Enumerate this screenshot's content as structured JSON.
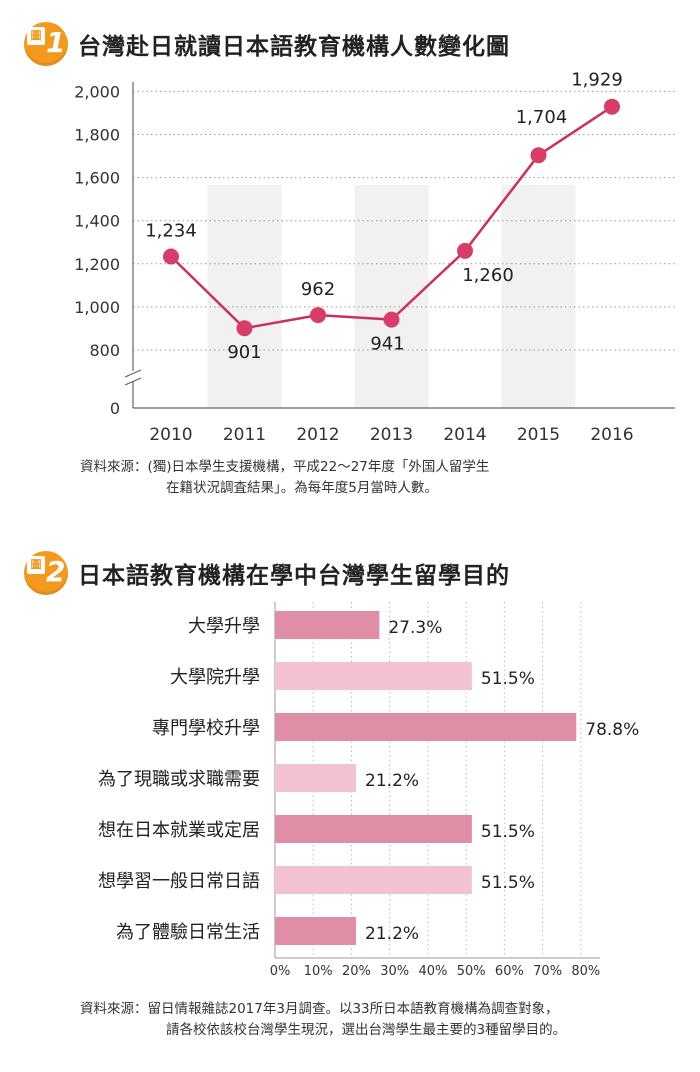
{
  "figure1": {
    "badge_tag": "圖",
    "badge_num": "1",
    "title": "台灣赴日就讀日本語教育機構人數變化圖",
    "source_line1": "資料來源：(獨)日本學生支援機構，平成22～27年度「外国人留学生",
    "source_line2": "在籍状況調査結果」。為每年度5月當時人數。"
  },
  "figure2": {
    "badge_tag": "圖",
    "badge_num": "2",
    "title": "日本語教育機構在學中台灣學生留學目的",
    "source_line1": "資料來源：留日情報雜誌2017年3月調查。以33所日本語教育機構為調查對象，",
    "source_line2": "請各校依該校台灣學生現況，選出台灣學生最主要的3種留學目的。"
  },
  "chart_data": [
    {
      "type": "line",
      "x": [
        "2010",
        "2011",
        "2012",
        "2013",
        "2014",
        "2015",
        "2016"
      ],
      "series": [
        {
          "values": [
            1234,
            901,
            962,
            941,
            1260,
            1704,
            1929
          ],
          "labels": [
            "1,234",
            "901",
            "962",
            "941",
            "1,260",
            "1,704",
            "1,929"
          ]
        }
      ],
      "yticks": [
        "0",
        "800",
        "1,000",
        "1,200",
        "1,400",
        "1,600",
        "1,800",
        "2,000"
      ],
      "ytick_values": [
        0,
        800,
        1000,
        1200,
        1400,
        1600,
        1800,
        2000
      ],
      "ylim": [
        0,
        2000
      ],
      "axis_break": true,
      "grid": "dotted horizontal",
      "colors": {
        "line": "#c8325a",
        "marker": "#d83c69",
        "band": "#f1f1f1"
      }
    },
    {
      "type": "bar",
      "orientation": "horizontal",
      "categories": [
        "大學升學",
        "大學院升學",
        "專門學校升學",
        "為了現職或求職需要",
        "想在日本就業或定居",
        "想學習一般日常日語",
        "為了體驗日常生活"
      ],
      "values": [
        27.3,
        51.5,
        78.8,
        21.2,
        51.5,
        51.5,
        21.2
      ],
      "value_labels": [
        "27.3%",
        "51.5%",
        "78.8%",
        "21.2%",
        "51.5%",
        "51.5%",
        "21.2%"
      ],
      "xticks": [
        "0%",
        "10%",
        "20%",
        "30%",
        "40%",
        "50%",
        "60%",
        "70%",
        "80%"
      ],
      "xtick_values": [
        0,
        10,
        20,
        30,
        40,
        50,
        60,
        70,
        80
      ],
      "xlim": [
        0,
        80
      ],
      "colors": {
        "dark": "#e08da6",
        "light": "#f3c2d0",
        "grid": "#bbbbbb"
      }
    }
  ]
}
